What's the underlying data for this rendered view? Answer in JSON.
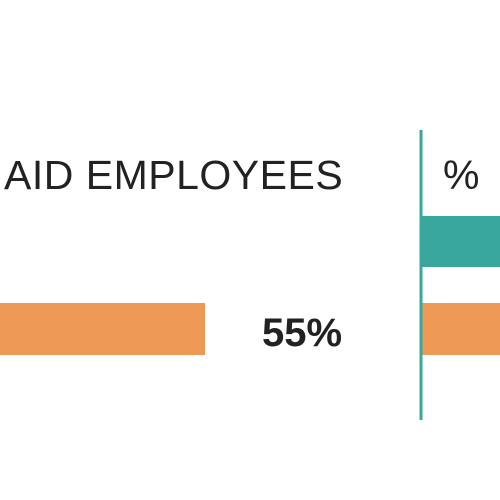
{
  "chart_data": {
    "type": "bar",
    "panels": [
      {
        "header": "AID EMPLOYEES",
        "xlim": [
          0,
          100
        ],
        "series": [
          {
            "color": "#3aa79c",
            "values": [
              null
            ]
          },
          {
            "color": "#ee9955",
            "values": [
              55
            ],
            "label": "55%"
          }
        ]
      },
      {
        "header": "% ",
        "series": [
          {
            "color": "#3aa79c"
          },
          {
            "color": "#ee9955"
          }
        ]
      }
    ],
    "divider_color": "#3aa79c"
  }
}
